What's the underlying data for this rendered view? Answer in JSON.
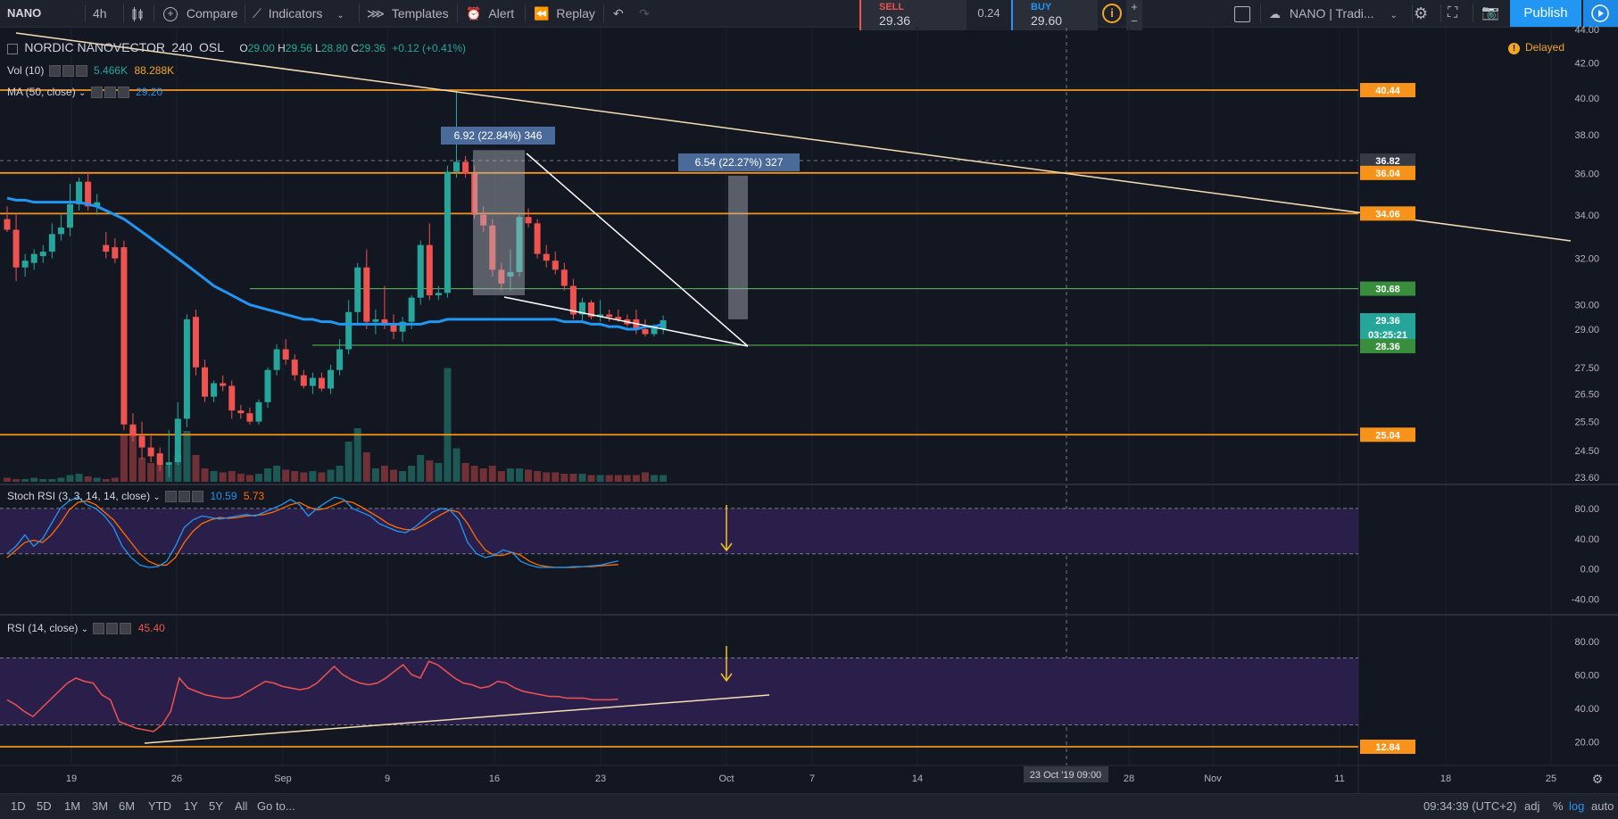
{
  "toolbar": {
    "symbol": "NANO",
    "interval": "4h",
    "compare": "Compare",
    "indicators": "Indicators",
    "templates": "Templates",
    "alert": "Alert",
    "replay": "Replay",
    "sell_label": "SELL",
    "sell_price": "29.36",
    "spread": "0.24",
    "buy_label": "BUY",
    "buy_price": "29.60",
    "layout_name": "NANO | Tradi...",
    "publish": "Publish"
  },
  "legend": {
    "title": "NORDIC NANOVECTOR",
    "interval": "240",
    "exchange": "OSL",
    "ohlc": {
      "o_label": "O",
      "o": "29.00",
      "h_label": "H",
      "h": "29.56",
      "l_label": "L",
      "l": "28.80",
      "c_label": "C",
      "c": "29.36",
      "change": "+0.12 (+0.41%)"
    },
    "vol_label": "Vol (10)",
    "vol_value1": "5.466K",
    "vol_value2": "88.288K",
    "ma_label": "MA (50, close)",
    "ma_value": "29.20",
    "delayed": "Delayed"
  },
  "stoch": {
    "label": "Stoch RSI (3, 3, 14, 14, close)",
    "k": "10.59",
    "d": "5.73"
  },
  "rsi": {
    "label": "RSI (14, close)",
    "value": "45.40"
  },
  "annotations": {
    "box1": "6.92 (22.84%) 346",
    "box2": "6.54 (22.27%) 327"
  },
  "price_axis": {
    "ticks": [
      "44.00",
      "42.00",
      "40.00",
      "38.00",
      "36.00",
      "34.00",
      "32.00",
      "30.00",
      "29.00",
      "27.50",
      "26.50",
      "25.50",
      "24.50",
      "23.60"
    ],
    "tags": [
      {
        "label": "40.44",
        "color": "#f7931a"
      },
      {
        "label": "36.82",
        "color": "#363a45"
      },
      {
        "label": "36.04",
        "color": "#f7931a"
      },
      {
        "label": "34.06",
        "color": "#f7931a"
      },
      {
        "label": "30.68",
        "color": "#388e3c"
      },
      {
        "label": "29.36",
        "color": "#26a69a"
      },
      {
        "label": "03:25:21",
        "color": "#26a69a"
      },
      {
        "label": "28.36",
        "color": "#388e3c"
      },
      {
        "label": "25.04",
        "color": "#f7931a"
      },
      {
        "label": "12.84",
        "color": "#f7931a"
      }
    ],
    "stoch_ticks": [
      "80.00",
      "40.00",
      "0.00",
      "-40.00"
    ],
    "rsi_ticks": [
      "80.00",
      "60.00",
      "40.00",
      "20.00"
    ]
  },
  "time_axis": {
    "labels": [
      "19",
      "26",
      "Sep",
      "9",
      "16",
      "23",
      "Oct",
      "7",
      "14",
      "28",
      "Nov",
      "11",
      "18",
      "25"
    ],
    "cursor_label": "23 Oct '19  09:00"
  },
  "bottom": {
    "ranges": [
      "1D",
      "5D",
      "1M",
      "3M",
      "6M",
      "YTD",
      "1Y",
      "5Y",
      "All"
    ],
    "goto": "Go to...",
    "clock": "09:34:39 (UTC+2)",
    "adj": "adj",
    "pct": "%",
    "log": "log",
    "auto": "auto"
  },
  "colors": {
    "up": "#26a69a",
    "down": "#ef5350",
    "orange": "#f7931a",
    "ma": "#2196f3"
  },
  "chart_data": {
    "type": "candlestick",
    "candles": [
      {
        "o": 33.8,
        "h": 34.4,
        "l": 33.2,
        "c": 33.3
      },
      {
        "o": 33.3,
        "h": 34.0,
        "l": 31.0,
        "c": 31.6
      },
      {
        "o": 31.6,
        "h": 32.2,
        "l": 31.2,
        "c": 31.9
      },
      {
        "o": 31.8,
        "h": 32.4,
        "l": 31.5,
        "c": 32.2
      },
      {
        "o": 32.1,
        "h": 32.6,
        "l": 31.8,
        "c": 32.3
      },
      {
        "o": 32.3,
        "h": 33.6,
        "l": 32.0,
        "c": 33.1
      },
      {
        "o": 33.1,
        "h": 34.0,
        "l": 32.8,
        "c": 33.4
      },
      {
        "o": 33.4,
        "h": 35.5,
        "l": 33.0,
        "c": 34.5
      },
      {
        "o": 34.5,
        "h": 35.8,
        "l": 34.2,
        "c": 35.6
      },
      {
        "o": 35.6,
        "h": 36.1,
        "l": 34.2,
        "c": 34.4
      },
      {
        "o": 34.4,
        "h": 35.0,
        "l": 34.0,
        "c": 34.6
      },
      {
        "o": 32.6,
        "h": 33.2,
        "l": 32.0,
        "c": 32.3
      },
      {
        "o": 32.5,
        "h": 32.9,
        "l": 31.8,
        "c": 32.0
      },
      {
        "o": 32.5,
        "h": 32.8,
        "l": 25.2,
        "c": 25.4
      },
      {
        "o": 25.4,
        "h": 25.8,
        "l": 24.8,
        "c": 25.0
      },
      {
        "o": 25.0,
        "h": 25.5,
        "l": 24.2,
        "c": 24.6
      },
      {
        "o": 24.6,
        "h": 25.0,
        "l": 24.1,
        "c": 24.3
      },
      {
        "o": 24.4,
        "h": 24.6,
        "l": 23.8,
        "c": 24.0
      },
      {
        "o": 24.0,
        "h": 25.2,
        "l": 23.6,
        "c": 24.1
      },
      {
        "o": 24.1,
        "h": 26.2,
        "l": 24.0,
        "c": 25.6
      },
      {
        "o": 25.6,
        "h": 29.6,
        "l": 25.3,
        "c": 29.4
      },
      {
        "o": 29.5,
        "h": 29.8,
        "l": 27.2,
        "c": 27.5
      },
      {
        "o": 27.5,
        "h": 27.8,
        "l": 26.2,
        "c": 26.4
      },
      {
        "o": 26.4,
        "h": 27.0,
        "l": 26.2,
        "c": 26.9
      },
      {
        "o": 26.9,
        "h": 27.2,
        "l": 26.6,
        "c": 26.8
      },
      {
        "o": 26.8,
        "h": 27.0,
        "l": 25.6,
        "c": 25.9
      },
      {
        "o": 25.9,
        "h": 26.1,
        "l": 25.6,
        "c": 25.8
      },
      {
        "o": 25.8,
        "h": 26.0,
        "l": 25.4,
        "c": 25.5
      },
      {
        "o": 25.5,
        "h": 26.3,
        "l": 25.4,
        "c": 26.2
      },
      {
        "o": 26.2,
        "h": 27.5,
        "l": 26.0,
        "c": 27.4
      },
      {
        "o": 27.4,
        "h": 28.4,
        "l": 27.2,
        "c": 28.2
      },
      {
        "o": 28.2,
        "h": 28.6,
        "l": 27.6,
        "c": 27.8
      },
      {
        "o": 27.8,
        "h": 28.0,
        "l": 27.0,
        "c": 27.2
      },
      {
        "o": 27.2,
        "h": 27.4,
        "l": 26.7,
        "c": 26.8
      },
      {
        "o": 26.8,
        "h": 27.3,
        "l": 26.5,
        "c": 27.1
      },
      {
        "o": 27.1,
        "h": 27.3,
        "l": 26.6,
        "c": 26.7
      },
      {
        "o": 26.7,
        "h": 27.6,
        "l": 26.5,
        "c": 27.4
      },
      {
        "o": 27.4,
        "h": 28.6,
        "l": 27.2,
        "c": 28.2
      },
      {
        "o": 28.2,
        "h": 30.2,
        "l": 28.0,
        "c": 29.7
      },
      {
        "o": 29.7,
        "h": 31.8,
        "l": 29.2,
        "c": 31.6
      },
      {
        "o": 31.6,
        "h": 32.4,
        "l": 29.0,
        "c": 29.3
      },
      {
        "o": 29.3,
        "h": 29.8,
        "l": 28.8,
        "c": 29.4
      },
      {
        "o": 29.4,
        "h": 30.8,
        "l": 29.0,
        "c": 29.2
      },
      {
        "o": 29.2,
        "h": 29.6,
        "l": 28.6,
        "c": 28.9
      },
      {
        "o": 28.9,
        "h": 29.5,
        "l": 28.5,
        "c": 29.3
      },
      {
        "o": 29.3,
        "h": 30.4,
        "l": 29.0,
        "c": 30.3
      },
      {
        "o": 30.3,
        "h": 32.8,
        "l": 30.0,
        "c": 32.6
      },
      {
        "o": 32.6,
        "h": 33.6,
        "l": 30.2,
        "c": 30.4
      },
      {
        "o": 30.4,
        "h": 30.8,
        "l": 30.2,
        "c": 30.5
      },
      {
        "o": 30.5,
        "h": 36.4,
        "l": 30.3,
        "c": 36.1
      },
      {
        "o": 36.1,
        "h": 40.4,
        "l": 35.8,
        "c": 36.6
      },
      {
        "o": 36.6,
        "h": 36.9,
        "l": 35.8,
        "c": 36.0
      },
      {
        "o": 36.0,
        "h": 36.4,
        "l": 33.8,
        "c": 34.0
      },
      {
        "o": 34.0,
        "h": 34.4,
        "l": 33.2,
        "c": 33.5
      },
      {
        "o": 33.5,
        "h": 33.8,
        "l": 31.2,
        "c": 31.5
      },
      {
        "o": 31.5,
        "h": 31.8,
        "l": 30.6,
        "c": 30.9
      },
      {
        "o": 31.2,
        "h": 32.4,
        "l": 30.6,
        "c": 31.4
      },
      {
        "o": 31.4,
        "h": 34.1,
        "l": 31.2,
        "c": 33.9
      },
      {
        "o": 33.9,
        "h": 34.3,
        "l": 33.4,
        "c": 33.6
      },
      {
        "o": 33.6,
        "h": 33.8,
        "l": 32.0,
        "c": 32.2
      },
      {
        "o": 32.2,
        "h": 32.6,
        "l": 31.6,
        "c": 31.9
      },
      {
        "o": 31.9,
        "h": 32.3,
        "l": 31.3,
        "c": 31.5
      },
      {
        "o": 31.5,
        "h": 31.8,
        "l": 30.6,
        "c": 30.8
      },
      {
        "o": 30.8,
        "h": 31.1,
        "l": 29.4,
        "c": 29.6
      },
      {
        "o": 29.6,
        "h": 30.3,
        "l": 29.3,
        "c": 30.1
      },
      {
        "o": 30.1,
        "h": 30.2,
        "l": 29.4,
        "c": 29.5
      },
      {
        "o": 29.5,
        "h": 30.2,
        "l": 29.3,
        "c": 29.6
      },
      {
        "o": 29.6,
        "h": 29.8,
        "l": 29.3,
        "c": 29.5
      },
      {
        "o": 29.5,
        "h": 29.8,
        "l": 29.3,
        "c": 29.4
      },
      {
        "o": 29.4,
        "h": 29.6,
        "l": 29.1,
        "c": 29.2
      },
      {
        "o": 29.4,
        "h": 29.8,
        "l": 28.8,
        "c": 29.0
      },
      {
        "o": 29.0,
        "h": 29.4,
        "l": 28.7,
        "c": 28.8
      },
      {
        "o": 28.8,
        "h": 29.2,
        "l": 28.7,
        "c": 29.1
      },
      {
        "o": 29.0,
        "h": 29.56,
        "l": 28.8,
        "c": 29.36
      }
    ],
    "volume": [
      3,
      2,
      2,
      3,
      2,
      2,
      3,
      5,
      6,
      4,
      3,
      2,
      3,
      35,
      40,
      18,
      14,
      12,
      12,
      20,
      38,
      20,
      10,
      8,
      7,
      8,
      6,
      5,
      6,
      10,
      12,
      9,
      8,
      7,
      8,
      7,
      9,
      12,
      30,
      40,
      22,
      10,
      12,
      9,
      8,
      12,
      20,
      16,
      14,
      85,
      25,
      14,
      12,
      10,
      12,
      8,
      10,
      10,
      9,
      8,
      7,
      7,
      6,
      6,
      6,
      5,
      5,
      5,
      5,
      5,
      5,
      7,
      5,
      5
    ],
    "ma50": [
      34.8,
      34.7,
      34.7,
      34.6,
      34.6,
      34.6,
      34.6,
      34.6,
      34.6,
      34.5,
      34.4,
      34.2,
      34.0,
      33.8,
      33.5,
      33.2,
      32.9,
      32.6,
      32.3,
      32.0,
      31.7,
      31.4,
      31.1,
      30.8,
      30.6,
      30.4,
      30.2,
      30.0,
      29.9,
      29.8,
      29.7,
      29.6,
      29.5,
      29.4,
      29.4,
      29.3,
      29.3,
      29.2,
      29.2,
      29.2,
      29.2,
      29.2,
      29.2,
      29.2,
      29.2,
      29.2,
      29.2,
      29.3,
      29.3,
      29.4,
      29.4,
      29.4,
      29.4,
      29.4,
      29.4,
      29.4,
      29.4,
      29.4,
      29.4,
      29.4,
      29.4,
      29.4,
      29.3,
      29.3,
      29.3,
      29.2,
      29.2,
      29.1,
      29.1,
      29.0,
      29.0,
      29.1,
      29.1,
      29.2
    ],
    "stoch_k": [
      20,
      30,
      45,
      30,
      40,
      60,
      80,
      90,
      95,
      85,
      80,
      70,
      55,
      30,
      15,
      5,
      2,
      3,
      10,
      30,
      55,
      65,
      70,
      68,
      66,
      68,
      70,
      72,
      70,
      75,
      80,
      85,
      92,
      85,
      70,
      80,
      88,
      95,
      92,
      80,
      75,
      70,
      60,
      55,
      50,
      48,
      55,
      65,
      75,
      80,
      78,
      65,
      35,
      20,
      15,
      18,
      25,
      22,
      10,
      5,
      2,
      2,
      2,
      2,
      3,
      3,
      4,
      5,
      8,
      10.59
    ],
    "stoch_d": [
      15,
      25,
      35,
      38,
      35,
      45,
      60,
      78,
      88,
      90,
      85,
      75,
      65,
      50,
      35,
      20,
      10,
      5,
      5,
      15,
      35,
      50,
      60,
      65,
      68,
      67,
      68,
      70,
      71,
      72,
      75,
      80,
      85,
      88,
      82,
      78,
      80,
      85,
      90,
      88,
      82,
      75,
      68,
      60,
      55,
      52,
      52,
      58,
      65,
      72,
      78,
      75,
      60,
      40,
      25,
      18,
      18,
      22,
      18,
      10,
      5,
      3,
      2,
      2,
      2,
      3,
      3,
      4,
      5,
      5.73
    ],
    "rsi_values": [
      45,
      42,
      38,
      35,
      40,
      45,
      50,
      55,
      58,
      56,
      55,
      48,
      45,
      32,
      30,
      28,
      27,
      26,
      30,
      38,
      58,
      52,
      50,
      48,
      47,
      46,
      46,
      47,
      50,
      53,
      56,
      55,
      53,
      52,
      51,
      52,
      55,
      60,
      65,
      60,
      57,
      55,
      54,
      55,
      58,
      62,
      66,
      60,
      58,
      68,
      66,
      62,
      58,
      55,
      54,
      52,
      53,
      56,
      55,
      52,
      50,
      49,
      48,
      47,
      47,
      46,
      46,
      46,
      45,
      45,
      45,
      45.4
    ],
    "price_levels": [
      40.44,
      36.04,
      34.06,
      30.68,
      28.36,
      25.04,
      12.84
    ]
  }
}
